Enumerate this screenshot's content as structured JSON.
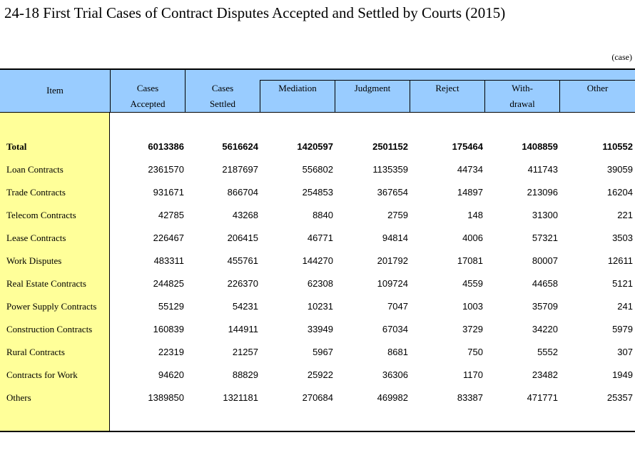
{
  "title": "24-18  First Trial Cases of Contract Disputes Accepted and Settled by Courts (2015)",
  "unit": "(case)",
  "headers": {
    "item": "Item",
    "accepted_1": "Cases",
    "accepted_2": "Accepted",
    "settled_1": "Cases",
    "settled_2": "Settled",
    "mediation": "Mediation",
    "judgment": "Judgment",
    "reject": "Reject",
    "withdrawal_1": "With-",
    "withdrawal_2": "drawal",
    "other": "Other"
  },
  "rows": [
    {
      "label": "Total",
      "values": [
        "6013386",
        "5616624",
        "1420597",
        "2501152",
        "175464",
        "1408859",
        "110552"
      ]
    },
    {
      "label": "Loan Contracts",
      "values": [
        "2361570",
        "2187697",
        "556802",
        "1135359",
        "44734",
        "411743",
        "39059"
      ]
    },
    {
      "label": "Trade Contracts",
      "values": [
        "931671",
        "866704",
        "254853",
        "367654",
        "14897",
        "213096",
        "16204"
      ]
    },
    {
      "label": "Telecom Contracts",
      "values": [
        "42785",
        "43268",
        "8840",
        "2759",
        "148",
        "31300",
        "221"
      ]
    },
    {
      "label": "Lease Contracts",
      "values": [
        "226467",
        "206415",
        "46771",
        "94814",
        "4006",
        "57321",
        "3503"
      ]
    },
    {
      "label": "Work Disputes",
      "values": [
        "483311",
        "455761",
        "144270",
        "201792",
        "17081",
        "80007",
        "12611"
      ]
    },
    {
      "label": "Real Estate Contracts",
      "values": [
        "244825",
        "226370",
        "62308",
        "109724",
        "4559",
        "44658",
        "5121"
      ]
    },
    {
      "label": "Power Supply Contracts",
      "values": [
        "55129",
        "54231",
        "10231",
        "7047",
        "1003",
        "35709",
        "241"
      ]
    },
    {
      "label": "Construction Contracts",
      "values": [
        "160839",
        "144911",
        "33949",
        "67034",
        "3729",
        "34220",
        "5979"
      ]
    },
    {
      "label": "Rural Contracts",
      "values": [
        "22319",
        "21257",
        "5967",
        "8681",
        "750",
        "5552",
        "307"
      ]
    },
    {
      "label": "Contracts for Work",
      "values": [
        "94620",
        "88829",
        "25922",
        "36306",
        "1170",
        "23482",
        "1949"
      ]
    },
    {
      "label": "Others",
      "values": [
        "1389850",
        "1321181",
        "270684",
        "469982",
        "83387",
        "471771",
        "25357"
      ]
    }
  ],
  "colors": {
    "header_bg": "#99ccff",
    "stub_bg": "#ffff99"
  }
}
